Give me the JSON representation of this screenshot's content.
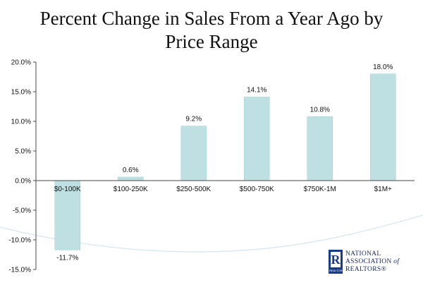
{
  "title": {
    "line1": "Percent Change in Sales From a Year Ago by",
    "line2": "Price Range"
  },
  "logo": {
    "mark_letter": "R",
    "mark_caption": "REALTOR",
    "line1": "NATIONAL",
    "line2": "ASSOCIATION",
    "line2_suffix": "of",
    "line3": "REALTORS®"
  },
  "colors": {
    "bar_fill": "#bfe0e2",
    "bar_stroke": "#a9d2d4",
    "axis": "#4a4a4a",
    "text": "#111111",
    "logo": "#1a3a8a"
  },
  "chart_data": {
    "type": "bar",
    "title": "Percent Change in Sales From a Year Ago by Price Range",
    "categories": [
      "$0-100K",
      "$100-250K",
      "$250-500K",
      "$500-750K",
      "$750K-1M",
      "$1M+"
    ],
    "values": [
      -11.7,
      0.6,
      9.2,
      14.1,
      10.8,
      18.0
    ],
    "value_labels": [
      "-11.7%",
      "0.6%",
      "9.2%",
      "14.1%",
      "10.8%",
      "18.0%"
    ],
    "ylim": [
      -15,
      20
    ],
    "yticks": [
      20,
      15,
      10,
      5,
      0,
      -5,
      -10,
      -15
    ],
    "ytick_labels": [
      "20.0%",
      "15.0%",
      "10.0%",
      "5.0%",
      "0.0%",
      "-5.0%",
      "-10.0%",
      "-15.0%"
    ],
    "xlabel": "",
    "ylabel": "",
    "grid": false,
    "legend": "none"
  }
}
